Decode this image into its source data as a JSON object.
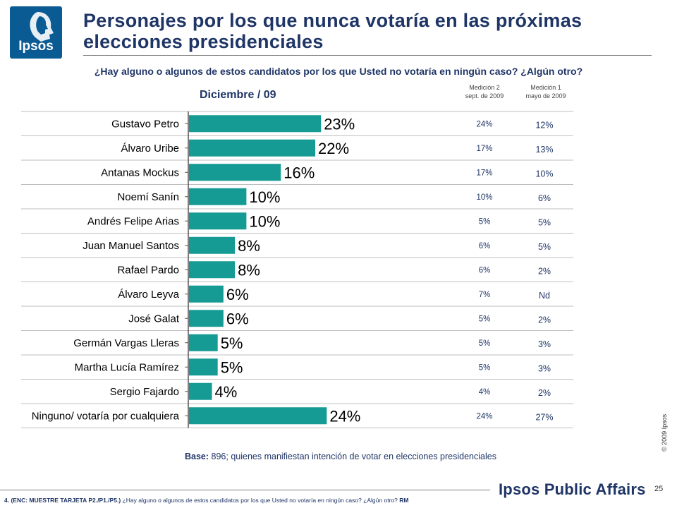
{
  "header": {
    "logo_text": "Ipsos",
    "title": "Personajes por los que nunca votaría en las próximas elecciones presidenciales",
    "question": "¿Hay alguno o algunos de estos candidatos por los que Usted no votaría en ningún caso? ¿Algún otro?",
    "colors": {
      "title": "#1f3566",
      "logo": "#0a5b94"
    }
  },
  "columns": {
    "medicion2": {
      "line1": "Medición 2",
      "line2": "sept. de 2009"
    },
    "medicion1": {
      "line1": "Medición 1",
      "line2": "mayo de 2009"
    }
  },
  "chart_data": {
    "type": "bar",
    "orientation": "horizontal",
    "title": "Diciembre / 09",
    "categories": [
      "Gustavo Petro",
      "Álvaro Uribe",
      "Antanas Mockus",
      "Noemí Sanín",
      "Andrés Felipe Arias",
      "Juan Manuel Santos",
      "Rafael Pardo",
      "Álvaro Leyva",
      "José Galat",
      "Germán Vargas Lleras",
      "Martha Lucía Ramírez",
      "Sergio Fajardo",
      "Ninguno/ votaría por cualquiera"
    ],
    "values": [
      23,
      22,
      16,
      10,
      10,
      8,
      8,
      6,
      6,
      5,
      5,
      4,
      24
    ],
    "value_labels": [
      "23%",
      "22%",
      "16%",
      "10%",
      "10%",
      "8%",
      "8%",
      "6%",
      "6%",
      "5%",
      "5%",
      "4%",
      "24%"
    ],
    "bar_color": "#169a94",
    "xlim": [
      0,
      36
    ],
    "medicion2_labels": [
      "24%",
      "17%",
      "17%",
      "10%",
      "5%",
      "6%",
      "6%",
      "7%",
      "5%",
      "5%",
      "5%",
      "4%",
      "24%"
    ],
    "medicion1_labels": [
      "12%",
      "13%",
      "10%",
      "6%",
      "5%",
      "5%",
      "2%",
      "Nd",
      "2%",
      "3%",
      "3%",
      "2%",
      "27%"
    ]
  },
  "base": {
    "label": "Base:",
    "text": "896; quienes manifiestan intención de votar en elecciones presidenciales"
  },
  "footer": {
    "copyright": "© 2009 Ipsos",
    "page_number": "25",
    "brand": "Ipsos Public Affairs",
    "footnote_bold": "4.  (ENC: MUESTRE TARJETA P2./P1./P5.)",
    "footnote_text": "¿Hay alguno o algunos de estos candidatos por los que Usted no votaría en ningún caso? ¿Algún otro?",
    "footnote_end": "RM"
  }
}
